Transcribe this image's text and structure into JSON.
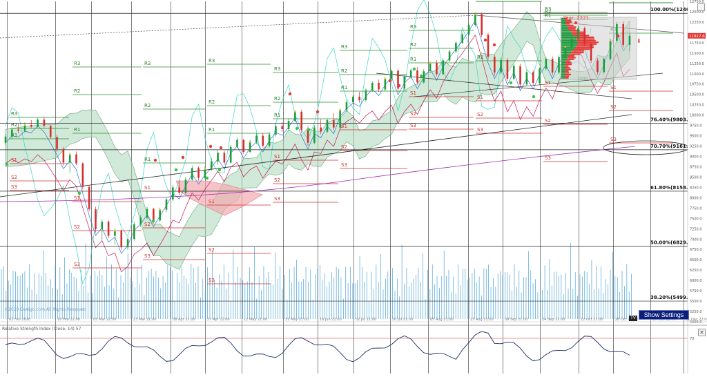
{
  "chart_data": {
    "type": "candlestick",
    "price_axis": {
      "min": 5000,
      "max": 12750,
      "ticks": [
        "12750.0",
        "12500.0",
        "12250.0",
        "11750.0",
        "11500.0",
        "11250.0",
        "11000.0",
        "10750.0",
        "10500.0",
        "10250.0",
        "10000.0",
        "9750.0",
        "9500.0",
        "9250.0",
        "9000.0",
        "8750.0",
        "8500.0",
        "8250.0",
        "8000.0",
        "7750.0",
        "7500.0",
        "7250.0",
        "7000.0",
        "6750.0",
        "6500.0",
        "6250.0",
        "6000.0",
        "5750.0",
        "5500.0",
        "5250.0",
        "5000.0"
      ],
      "ticks_hidden_note": ""
    },
    "last_price": "11917.6",
    "date_labels": [
      "02 Feb 2020",
      "16 Feb 22:00",
      "05 Mar 22:00",
      "23 Mar 21:00",
      "08 Apr 21:00",
      "27 Apr 21:00",
      "12 May 21:00",
      "31 May 21:00",
      "16 Jun 21:00",
      "02 Jul 21:00",
      "20 Jul 21:00",
      "05 Aug 21:00",
      "23 Aug 21:00",
      "08 Sep 21:00",
      "24 Sep 21:00",
      "12 Oct 21:00",
      "28 Oct 21:00",
      "15 Nov 22:00",
      "01 Dec 22:00"
    ],
    "fib_levels": [
      {
        "label": "100.00%(12462.3)",
        "price": 12462.3
      },
      {
        "label": "76.40%(9803.8)",
        "price": 9803.8
      },
      {
        "label": "70.70%(9161.6)",
        "price": 9161.6
      },
      {
        "label": "61.80%(8158.8)",
        "price": 8158.8
      },
      {
        "label": "50.00%(6829.4)",
        "price": 6829.4
      },
      {
        "label": "38.20%(5499.9)",
        "price": 5499.9
      }
    ],
    "volume_profile_label": "Year: 2221",
    "volume_profile_low": "1000",
    "watermark": "©2020 CeAlgo.com All Rights Reserved",
    "rsi": {
      "title": "Relative Strength Index (Close, 14) 57",
      "level_label": "70"
    },
    "pivot_labels": [
      "R3",
      "R2",
      "R1",
      "S1",
      "S2",
      "S3"
    ],
    "candles": [
      [
        9330,
        9540,
        9270,
        9480
      ],
      [
        9480,
        9700,
        9420,
        9650
      ],
      [
        9650,
        9790,
        9560,
        9620
      ],
      [
        9620,
        9820,
        9580,
        9760
      ],
      [
        9760,
        9880,
        9690,
        9720
      ],
      [
        9720,
        9930,
        9700,
        9890
      ],
      [
        9890,
        9960,
        9700,
        9740
      ],
      [
        9740,
        9760,
        9420,
        9470
      ],
      [
        9470,
        9520,
        9110,
        9180
      ],
      [
        9180,
        9230,
        8780,
        8850
      ],
      [
        8850,
        9090,
        8600,
        9050
      ],
      [
        9050,
        9120,
        8790,
        8830
      ],
      [
        8830,
        8860,
        8200,
        8260
      ],
      [
        8260,
        8310,
        7680,
        7720
      ],
      [
        7720,
        7780,
        7160,
        7240
      ],
      [
        7240,
        7470,
        6980,
        7420
      ],
      [
        7420,
        7460,
        7020,
        7080
      ],
      [
        7080,
        7260,
        6860,
        7200
      ],
      [
        7200,
        7230,
        6730,
        6800
      ],
      [
        6800,
        7060,
        6740,
        7000
      ],
      [
        7000,
        7420,
        6960,
        7360
      ],
      [
        7360,
        7580,
        7290,
        7520
      ],
      [
        7520,
        7780,
        7480,
        7730
      ],
      [
        7730,
        7760,
        7380,
        7450
      ],
      [
        7450,
        7760,
        7420,
        7710
      ],
      [
        7710,
        8000,
        7650,
        7960
      ],
      [
        7960,
        8310,
        7920,
        8250
      ],
      [
        8250,
        8420,
        8060,
        8120
      ],
      [
        8120,
        8500,
        8080,
        8440
      ],
      [
        8440,
        8780,
        8400,
        8720
      ],
      [
        8720,
        8760,
        8420,
        8480
      ],
      [
        8480,
        8760,
        8440,
        8700
      ],
      [
        8700,
        8960,
        8650,
        8880
      ],
      [
        8880,
        9150,
        8800,
        9090
      ],
      [
        9090,
        9140,
        8800,
        8850
      ],
      [
        8850,
        9280,
        8820,
        9230
      ],
      [
        9230,
        9450,
        9200,
        9400
      ],
      [
        9400,
        9420,
        9060,
        9110
      ],
      [
        9110,
        9400,
        9080,
        9350
      ],
      [
        9350,
        9560,
        9300,
        9500
      ],
      [
        9500,
        9560,
        9210,
        9260
      ],
      [
        9260,
        9580,
        9220,
        9530
      ],
      [
        9530,
        9780,
        9480,
        9730
      ],
      [
        9730,
        9830,
        9600,
        9660
      ],
      [
        9660,
        9920,
        9620,
        9860
      ],
      [
        9860,
        10120,
        9820,
        10080
      ],
      [
        10080,
        10130,
        9560,
        9640
      ],
      [
        9640,
        9730,
        9260,
        9330
      ],
      [
        9330,
        9760,
        9300,
        9700
      ],
      [
        9700,
        9900,
        9540,
        9600
      ],
      [
        9600,
        9920,
        9560,
        9880
      ],
      [
        9880,
        10050,
        9640,
        9700
      ],
      [
        9700,
        10160,
        9680,
        10120
      ],
      [
        10120,
        10360,
        10080,
        10310
      ],
      [
        10310,
        10480,
        10260,
        10440
      ],
      [
        10440,
        10560,
        10300,
        10360
      ],
      [
        10360,
        10640,
        10320,
        10600
      ],
      [
        10600,
        10820,
        10560,
        10780
      ],
      [
        10780,
        10860,
        10560,
        10620
      ],
      [
        10620,
        10920,
        10580,
        10880
      ],
      [
        10880,
        11110,
        10840,
        11070
      ],
      [
        11070,
        11120,
        10560,
        10640
      ],
      [
        10640,
        10980,
        10600,
        10930
      ],
      [
        10930,
        11130,
        10880,
        11080
      ],
      [
        11080,
        11160,
        10740,
        10790
      ],
      [
        10790,
        11110,
        10760,
        11060
      ],
      [
        11060,
        11300,
        11020,
        11260
      ],
      [
        11260,
        11330,
        10940,
        10990
      ],
      [
        10990,
        11370,
        10960,
        11320
      ],
      [
        11320,
        11580,
        11280,
        11540
      ],
      [
        11540,
        11790,
        11500,
        11750
      ],
      [
        11750,
        11990,
        11710,
        11950
      ],
      [
        11950,
        12220,
        11910,
        12180
      ],
      [
        12180,
        12480,
        12140,
        12440
      ],
      [
        12440,
        12480,
        11880,
        11940
      ],
      [
        11940,
        11990,
        11340,
        11410
      ],
      [
        11410,
        11460,
        10950,
        11030
      ],
      [
        11030,
        11380,
        10990,
        11330
      ],
      [
        11330,
        11380,
        10820,
        10880
      ],
      [
        10880,
        11240,
        10840,
        11190
      ],
      [
        11190,
        11240,
        10680,
        10740
      ],
      [
        10740,
        11100,
        10700,
        11040
      ],
      [
        11040,
        11090,
        10720,
        10780
      ],
      [
        10780,
        11160,
        10740,
        11120
      ],
      [
        11120,
        11410,
        11080,
        11360
      ],
      [
        11360,
        11420,
        10970,
        11030
      ],
      [
        11030,
        11450,
        10990,
        11400
      ],
      [
        11400,
        11700,
        11360,
        11650
      ],
      [
        11650,
        11900,
        11600,
        11850
      ],
      [
        11850,
        12150,
        11780,
        12100
      ],
      [
        12100,
        12140,
        11660,
        11720
      ],
      [
        11720,
        11760,
        11260,
        11320
      ],
      [
        11320,
        11380,
        10980,
        11040
      ],
      [
        11040,
        11400,
        11000,
        11360
      ],
      [
        11360,
        11850,
        11320,
        11800
      ],
      [
        11800,
        12250,
        11760,
        12200
      ],
      [
        12200,
        12260,
        11640,
        11700
      ],
      [
        11700,
        11990,
        11540,
        11917.6
      ]
    ]
  }
}
